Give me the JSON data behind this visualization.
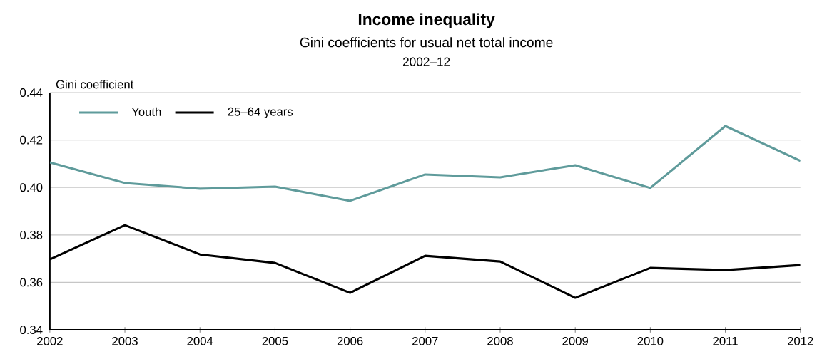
{
  "chart_data": {
    "type": "line",
    "title": "Income inequality",
    "subtitle": "Gini coefficients for usual net total income",
    "annotations": [
      "2002–12"
    ],
    "ylabel": "Gini coefficient",
    "x": [
      2002,
      2003,
      2004,
      2005,
      2006,
      2007,
      2008,
      2009,
      2010,
      2011,
      2012
    ],
    "series": [
      {
        "name": "Youth",
        "color": "#5f9b9b",
        "values": [
          0.4106,
          0.4019,
          0.3995,
          0.4004,
          0.3944,
          0.4055,
          0.4043,
          0.4094,
          0.3998,
          0.4259,
          0.4112
        ]
      },
      {
        "name": "25–64 years",
        "color": "#000000",
        "values": [
          0.3697,
          0.3841,
          0.3718,
          0.3682,
          0.3556,
          0.3712,
          0.3688,
          0.3535,
          0.3661,
          0.3652,
          0.3673
        ]
      }
    ],
    "xlim": [
      2002,
      2012
    ],
    "xticks": [
      2002,
      2003,
      2004,
      2005,
      2006,
      2007,
      2008,
      2009,
      2010,
      2011,
      2012
    ],
    "ylim": [
      0.34,
      0.44
    ],
    "yticks": [
      {
        "value": 0.34,
        "label": "0.34"
      },
      {
        "value": 0.36,
        "label": "0.36"
      },
      {
        "value": 0.38,
        "label": "0.38"
      },
      {
        "value": 0.4,
        "label": "0.40"
      },
      {
        "value": 0.42,
        "label": "0.42"
      },
      {
        "value": 0.44,
        "label": "0.44"
      }
    ],
    "grid": "y",
    "legend": "top left",
    "marker": "none",
    "line_style": "solid"
  }
}
